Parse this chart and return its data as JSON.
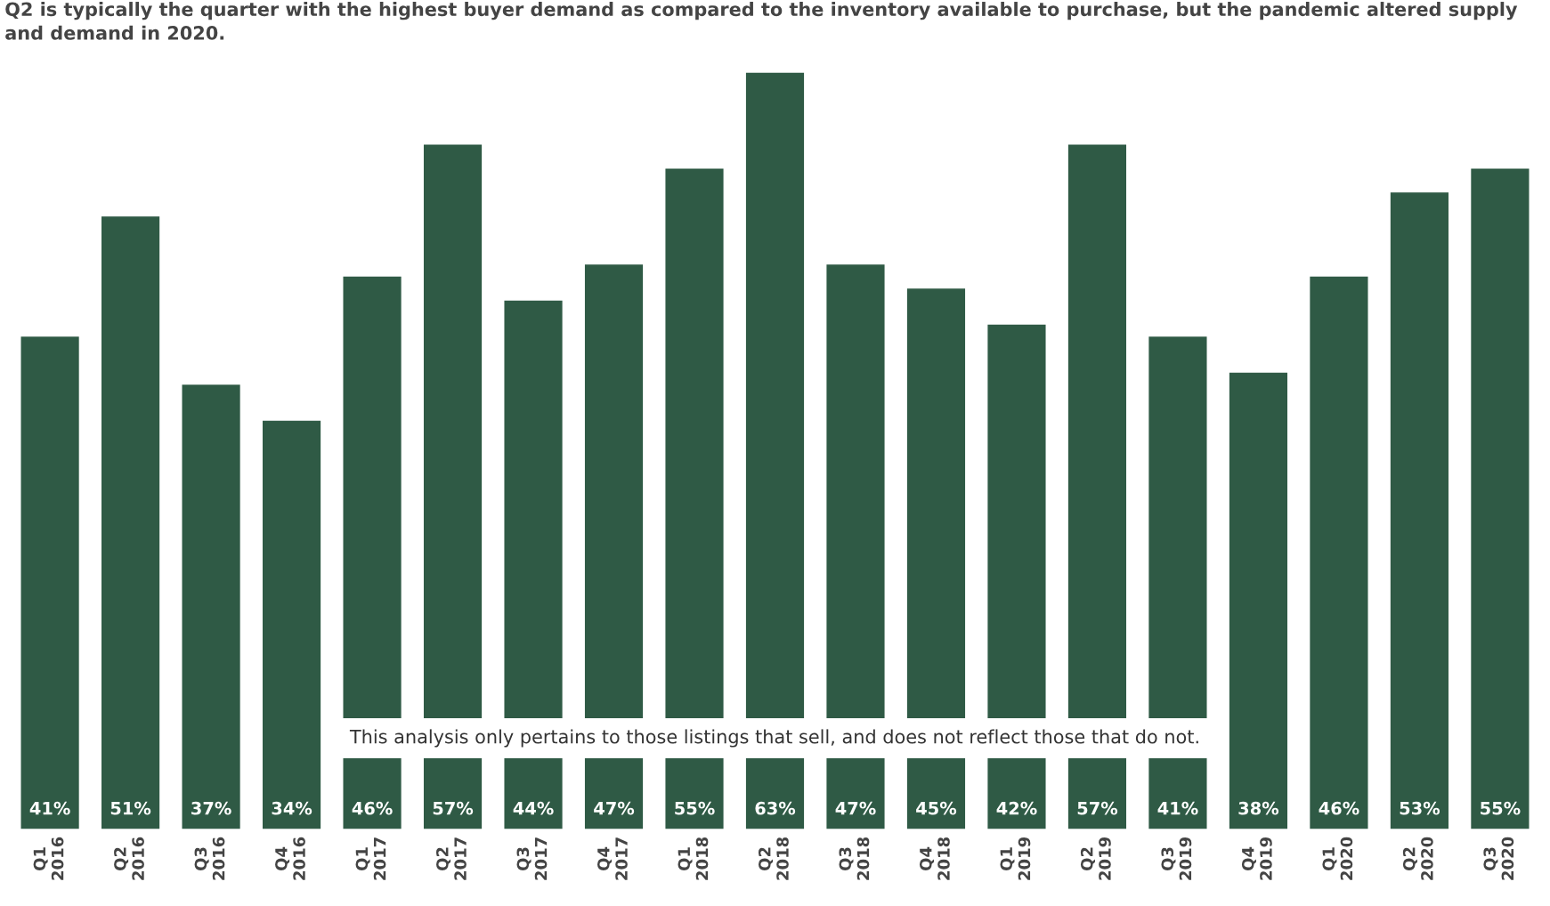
{
  "chart_data": {
    "type": "bar",
    "categories": [
      "Q1\n2016",
      "Q2\n2016",
      "Q3\n2016",
      "Q4\n2016",
      "Q1\n2017",
      "Q2\n2017",
      "Q3\n2017",
      "Q4\n2017",
      "Q1\n2018",
      "Q2\n2018",
      "Q3\n2018",
      "Q4\n2018",
      "Q1\n2019",
      "Q2\n2019",
      "Q3\n2019",
      "Q4\n2019",
      "Q1\n2020",
      "Q2\n2020",
      "Q3\n2020"
    ],
    "values": [
      41,
      51,
      37,
      34,
      46,
      57,
      44,
      47,
      55,
      63,
      47,
      45,
      42,
      57,
      41,
      38,
      46,
      53,
      55
    ],
    "value_labels": [
      "41%",
      "51%",
      "37%",
      "34%",
      "46%",
      "57%",
      "44%",
      "47%",
      "55%",
      "63%",
      "47%",
      "45%",
      "42%",
      "57%",
      "41%",
      "38%",
      "46%",
      "53%",
      "55%"
    ],
    "color": "#2f5a45",
    "tick_labels": "x",
    "grid": false,
    "legend": false,
    "annotations": [
      "Q2 is typically the quarter with the highest buyer demand as compared to the inventory available to purchase, but the pandemic altered supply and demand in 2020.",
      "This analysis only pertains to those listings that sell, and does not reflect those that do not."
    ]
  }
}
